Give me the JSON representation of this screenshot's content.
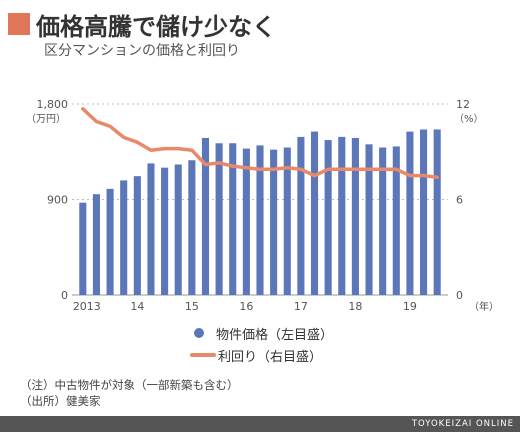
{
  "header": {
    "title": "価格高騰で儲け少なく",
    "subtitle": "区分マンションの価格と利回り",
    "accent_color": "#e0775a"
  },
  "chart_data": {
    "type": "bar+line",
    "x_tick_labels": [
      "2013",
      "14",
      "15",
      "16",
      "17",
      "18",
      "19"
    ],
    "x_unit": "（年）",
    "left_axis": {
      "ticks": [
        "1,800",
        "900",
        "0"
      ],
      "unit": "（万円）",
      "ylim": [
        0,
        1800
      ]
    },
    "right_axis": {
      "ticks": [
        "12",
        "6",
        "0"
      ],
      "unit": "（%）",
      "ylim": [
        0,
        12
      ]
    },
    "grid": "horizontal-dotted",
    "series": [
      {
        "name": "物件価格（左目盛）",
        "type": "bar",
        "axis": "left",
        "color": "#5b76b9",
        "values": [
          870,
          950,
          1000,
          1080,
          1120,
          1240,
          1200,
          1230,
          1270,
          1480,
          1430,
          1430,
          1380,
          1410,
          1370,
          1390,
          1490,
          1540,
          1460,
          1490,
          1480,
          1420,
          1390,
          1400,
          1540,
          1560,
          1560
        ]
      },
      {
        "name": "利回り（右目盛）",
        "type": "line",
        "axis": "right",
        "color": "#e8896a",
        "values": [
          11.7,
          10.9,
          10.6,
          9.9,
          9.6,
          9.1,
          9.2,
          9.2,
          9.1,
          8.2,
          8.3,
          8.1,
          8.0,
          7.9,
          7.9,
          8.0,
          7.9,
          7.5,
          7.9,
          7.9,
          7.9,
          7.9,
          7.9,
          7.9,
          7.5,
          7.5,
          7.4
        ]
      }
    ]
  },
  "legend": {
    "bar_label": "物件価格（左目盛）",
    "line_label": "利回り（右目盛）"
  },
  "notes": {
    "note1": "（注）中古物件が対象（一部新築も含む）",
    "note2": "（出所）健美家"
  },
  "footer": {
    "brand": "TOYOKEIZAI ONLINE",
    "bar_color": "#555555"
  }
}
